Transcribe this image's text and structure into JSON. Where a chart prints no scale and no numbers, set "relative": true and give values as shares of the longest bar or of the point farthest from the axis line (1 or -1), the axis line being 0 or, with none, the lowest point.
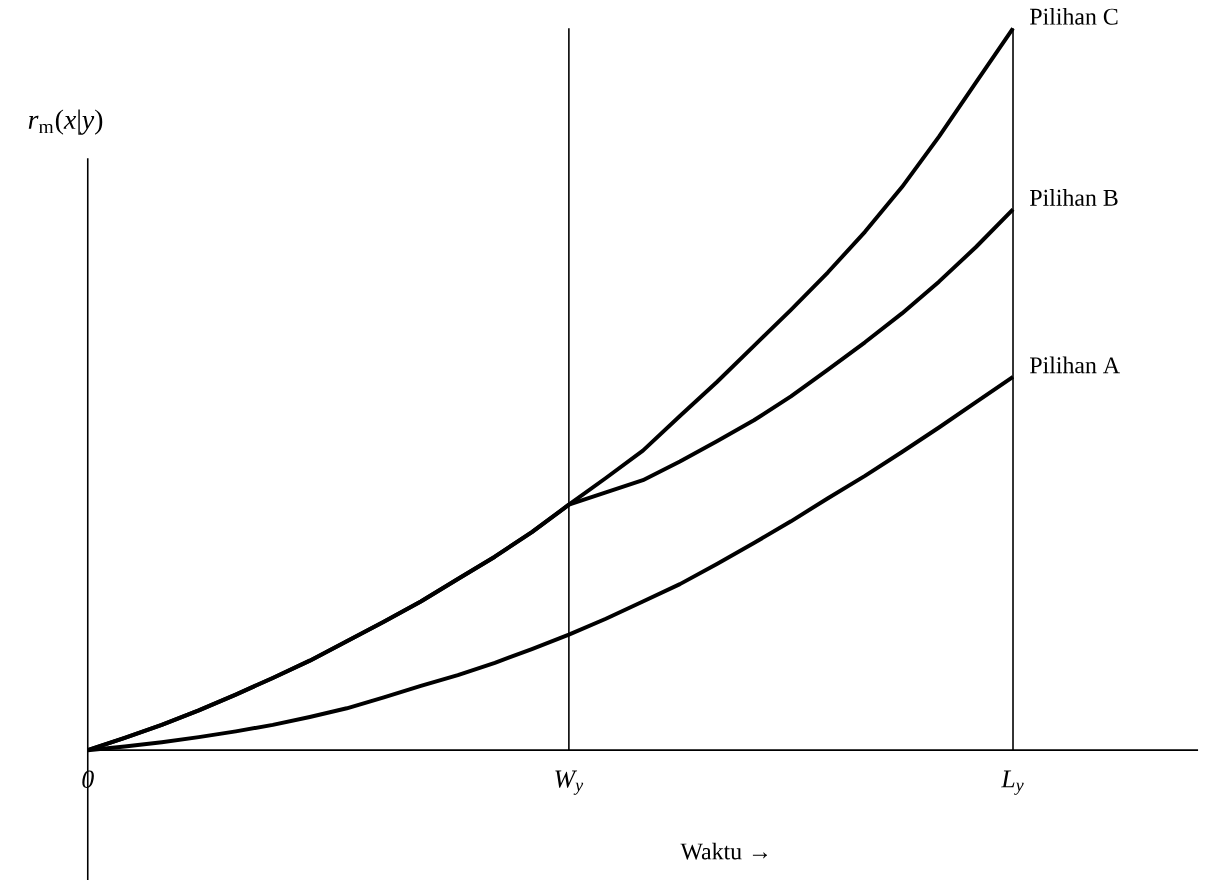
{
  "chart_data": {
    "type": "line",
    "relative": true,
    "xlabel": "Waktu  →",
    "ylabel": "*r*$_{m}$(*x*|*y*)",
    "categories": [
      "0",
      null,
      null,
      null,
      null,
      null,
      null,
      null,
      null,
      null,
      null,
      null,
      null,
      "W$_{y}$",
      null,
      null,
      null,
      null,
      null,
      null,
      null,
      null,
      null,
      null,
      null,
      "L$_{y}$",
      null,
      null,
      null,
      null,
      null
    ],
    "ref_lines": [
      {
        "axis": "x",
        "value": "W$_{y}$"
      },
      {
        "axis": "x",
        "value": "L$_{y}$"
      }
    ],
    "marker": "none",
    "line_style": "solid",
    "grid": false,
    "series": [
      {
        "name": "Pilihan C",
        "color": "#000000",
        "values": [
          0,
          0.017,
          0.035,
          0.055,
          0.077,
          0.1,
          0.124,
          0.151,
          0.178,
          0.206,
          0.237,
          0.268,
          0.302,
          0.34,
          0.377,
          0.415,
          0.463,
          0.51,
          0.56,
          0.61,
          0.662,
          0.718,
          0.78,
          0.85,
          0.925,
          1,
          null,
          null,
          null,
          null,
          null
        ]
      },
      {
        "name": "Pilihan B",
        "color": "#000000",
        "values": [
          0,
          0.017,
          0.035,
          0.055,
          0.077,
          0.1,
          0.124,
          0.151,
          0.178,
          0.206,
          0.237,
          0.268,
          0.302,
          0.34,
          0.357,
          0.374,
          0.4,
          0.428,
          0.457,
          0.49,
          0.527,
          0.565,
          0.605,
          0.649,
          0.697,
          0.749,
          null,
          null,
          null,
          null,
          null
        ]
      },
      {
        "name": "Pilihan A",
        "color": "#000000",
        "values": [
          0,
          0.005,
          0.011,
          0.018,
          0.026,
          0.035,
          0.046,
          0.058,
          0.073,
          0.089,
          0.104,
          0.121,
          0.14,
          0.16,
          0.182,
          0.206,
          0.23,
          0.258,
          0.287,
          0.317,
          0.349,
          0.38,
          0.413,
          0.447,
          0.482,
          0.517,
          null,
          null,
          null,
          null,
          null
        ]
      }
    ]
  }
}
